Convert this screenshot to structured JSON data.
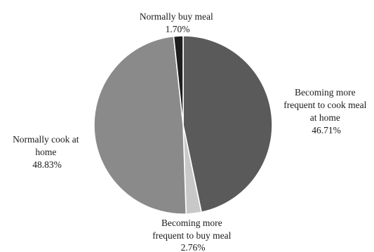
{
  "chart_data": {
    "type": "pie",
    "slices": [
      {
        "lines": [
          "Becoming more",
          "frequent to cook meal",
          "at home",
          "46.71%"
        ],
        "value": 46.71,
        "color": "#5a5a5a"
      },
      {
        "lines": [
          "Becoming more",
          "frequent to buy meal",
          "2.76%"
        ],
        "value": 2.76,
        "color": "#c8c8c8"
      },
      {
        "lines": [
          "Normally cook at",
          "home",
          "48.83%"
        ],
        "value": 48.83,
        "color": "#8a8a8a"
      },
      {
        "lines": [
          "Normally buy meal",
          "1.70%"
        ],
        "value": 1.7,
        "color": "#1e1e1e"
      }
    ],
    "start_angle": "12 o'clock",
    "direction": "clockwise",
    "legend": "none"
  }
}
